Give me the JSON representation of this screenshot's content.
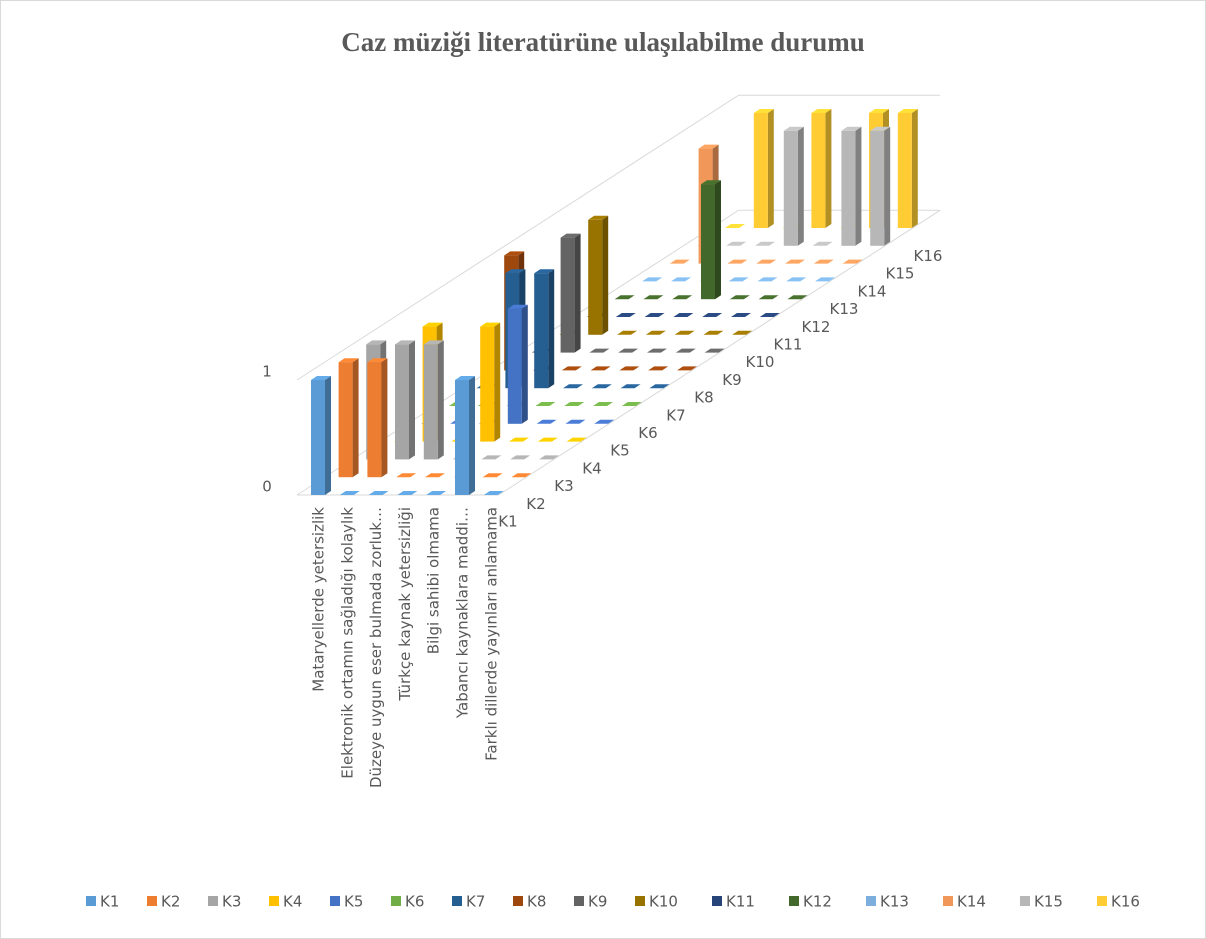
{
  "chart_data": {
    "type": "bar3d",
    "title": "Caz müziği literatürüne ulaşılabilme durumu",
    "categories": [
      "Mataryellerde yetersizlik",
      "Elektronik ortamın sağladığı kolaylık",
      "Düzeye uygun eser bulmada zorluk…",
      "Türkçe kaynak yetersizliği",
      "Bilgi sahibi olmama",
      "Yabancı kaynaklara maddi…",
      "Farklı dillerde yayınları anlamama"
    ],
    "series": [
      {
        "name": "K1",
        "color": "#5b9bd5",
        "values": [
          1,
          0,
          0,
          0,
          0,
          1,
          0
        ]
      },
      {
        "name": "K2",
        "color": "#ed7d31",
        "values": [
          1,
          1,
          0,
          0,
          0,
          0,
          0
        ]
      },
      {
        "name": "K3",
        "color": "#a5a5a5",
        "values": [
          1,
          1,
          1,
          0,
          0,
          0,
          0
        ]
      },
      {
        "name": "K4",
        "color": "#ffc000",
        "values": [
          0,
          1,
          0,
          1,
          0,
          0,
          0
        ]
      },
      {
        "name": "K5",
        "color": "#4472c4",
        "values": [
          0,
          0,
          0,
          1,
          0,
          0,
          0
        ]
      },
      {
        "name": "K6",
        "color": "#70ad47",
        "values": [
          0,
          0,
          0,
          0,
          0,
          0,
          0
        ]
      },
      {
        "name": "K7",
        "color": "#255e91",
        "values": [
          0,
          1,
          1,
          0,
          0,
          0,
          0
        ]
      },
      {
        "name": "K8",
        "color": "#9e480e",
        "values": [
          1,
          0,
          0,
          0,
          0,
          0,
          0
        ]
      },
      {
        "name": "K9",
        "color": "#636363",
        "values": [
          0,
          1,
          0,
          0,
          0,
          0,
          0
        ]
      },
      {
        "name": "K10",
        "color": "#997300",
        "values": [
          0,
          1,
          0,
          0,
          0,
          0,
          0
        ]
      },
      {
        "name": "K11",
        "color": "#264478",
        "values": [
          0,
          0,
          0,
          0,
          0,
          0,
          0
        ]
      },
      {
        "name": "K12",
        "color": "#43682b",
        "values": [
          0,
          0,
          0,
          1,
          0,
          0,
          0
        ]
      },
      {
        "name": "K13",
        "color": "#7cafdd",
        "values": [
          0,
          0,
          0,
          0,
          0,
          0,
          0
        ]
      },
      {
        "name": "K14",
        "color": "#f1975a",
        "values": [
          0,
          1,
          0,
          0,
          0,
          0,
          0
        ]
      },
      {
        "name": "K15",
        "color": "#b7b7b7",
        "values": [
          0,
          0,
          0,
          1,
          0,
          1,
          1
        ]
      },
      {
        "name": "K16",
        "color": "#ffcd33",
        "values": [
          0,
          1,
          0,
          1,
          0,
          1,
          1
        ]
      }
    ],
    "ylim": [
      0,
      1
    ],
    "yticks": [
      0,
      1
    ],
    "grid": true,
    "legend": "bottom"
  }
}
